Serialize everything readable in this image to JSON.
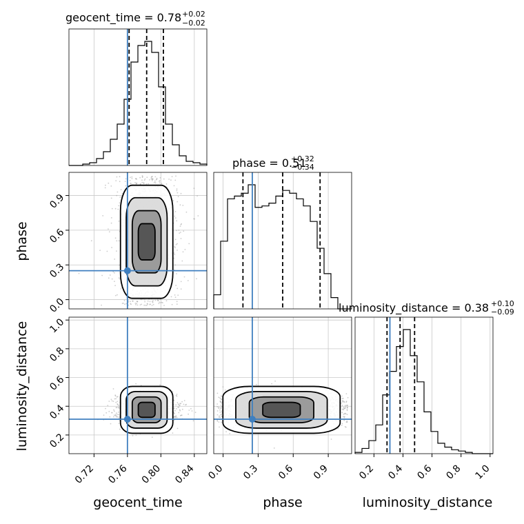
{
  "chart_data": {
    "type": "corner",
    "parameters": [
      "geocent_time",
      "phase",
      "luminosity_distance"
    ],
    "truth": {
      "geocent_time": 0.76,
      "phase": 0.25,
      "luminosity_distance": 0.31
    },
    "truth_color": "#3f7fbf",
    "ranges": {
      "geocent_time": [
        0.69,
        0.855
      ],
      "phase": [
        -0.08,
        1.1
      ],
      "luminosity_distance": [
        0.07,
        1.02
      ]
    },
    "ticks": {
      "geocent_time": [
        "0.72",
        "0.76",
        "0.80",
        "0.84"
      ],
      "phase": [
        "0.0",
        "0.3",
        "0.6",
        "0.9"
      ],
      "luminosity_distance": [
        "0.2",
        "0.4",
        "0.6",
        "0.8",
        "1.0"
      ]
    },
    "phase_y_ticks": [
      "0.0",
      "0.3",
      "0.6",
      "0.9"
    ],
    "ld_y_ticks": [
      "0.2",
      "0.4",
      "0.6",
      "0.8",
      "1.0"
    ],
    "panel_titles": {
      "geocent_time": {
        "main": "geocent_time = 0.78",
        "sup": "+0.02",
        "sub": "−0.02"
      },
      "phase": {
        "main": "phase = 0.51",
        "sup": "+0.32",
        "sub": "−0.34"
      },
      "luminosity_distance": {
        "main": "luminosity_distance = 0.38",
        "sup": "+0.10",
        "sub": "−0.09"
      }
    },
    "axis_labels": {
      "x": [
        "geocent_time",
        "phase",
        "luminosity_distance"
      ],
      "y": [
        "phase",
        "luminosity_distance"
      ]
    },
    "quantiles": {
      "geocent_time": [
        0.762,
        0.783,
        0.803
      ],
      "phase": [
        0.17,
        0.51,
        0.83
      ],
      "luminosity_distance": [
        0.29,
        0.38,
        0.48
      ]
    },
    "histograms": {
      "geocent_time": {
        "edges_start": 0.69,
        "bin_width": 0.00825,
        "counts": [
          0,
          0,
          1,
          2,
          5,
          10,
          19,
          30,
          48,
          75,
          87,
          90,
          82,
          57,
          30,
          15,
          7,
          3,
          2,
          1
        ]
      },
      "phase": {
        "edges_start": -0.08,
        "bin_width": 0.059,
        "counts": [
          10,
          48,
          78,
          80,
          82,
          88,
          72,
          73,
          75,
          80,
          84,
          82,
          78,
          73,
          62,
          43,
          25,
          8,
          0,
          0
        ]
      },
      "luminosity_distance": {
        "edges_start": 0.07,
        "bin_width": 0.0475,
        "counts": [
          1,
          4,
          10,
          22,
          45,
          63,
          82,
          95,
          75,
          55,
          32,
          17,
          8,
          5,
          3,
          2,
          1,
          0,
          0,
          0
        ]
      }
    },
    "grid": true
  }
}
